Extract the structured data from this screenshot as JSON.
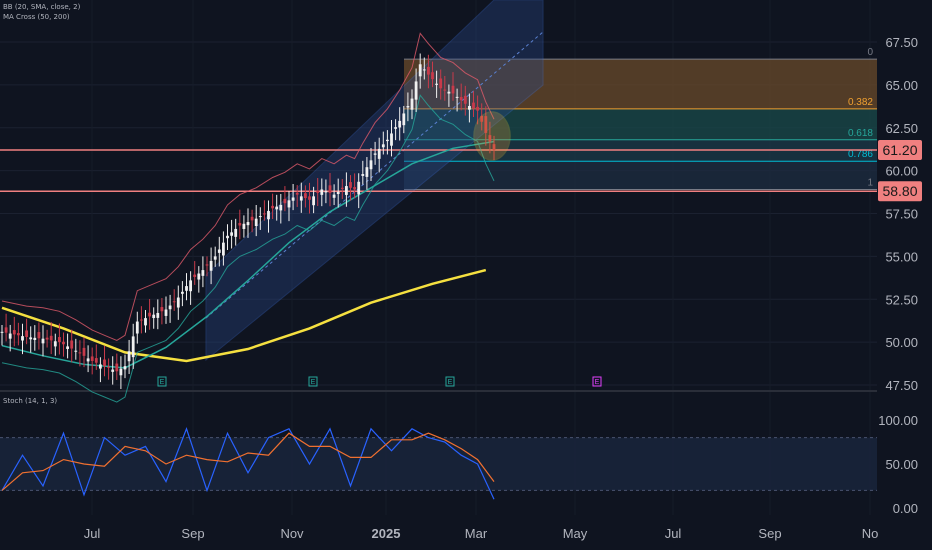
{
  "indicators": {
    "bb": "BB (20, SMA, close, 2)",
    "ma": "MA Cross (50, 200)",
    "stoch": "Stoch (14, 1, 3)"
  },
  "chart_data": {
    "type": "candlestick",
    "price_axis": {
      "ticks": [
        "67.50",
        "65.00",
        "62.50",
        "60.00",
        "57.50",
        "55.00",
        "52.50",
        "50.00",
        "47.50"
      ],
      "ylim": [
        47.5,
        67.5
      ]
    },
    "stoch_axis": {
      "ticks": [
        "100.00",
        "50.00",
        "0.00"
      ],
      "ylim": [
        0,
        100
      ],
      "bands": [
        80,
        20
      ]
    },
    "x_ticks": [
      "Jul",
      "Sep",
      "Nov",
      "2025",
      "Mar",
      "May",
      "Jul",
      "Sep",
      "No"
    ],
    "price_labels": [
      {
        "text": "61.20",
        "value": 61.2
      },
      {
        "text": "58.80",
        "value": 58.8
      }
    ],
    "horizontal_levels": [
      61.2,
      58.8
    ],
    "fib_levels": [
      {
        "label": "0",
        "value": 66.5
      },
      {
        "label": "0.382",
        "value": 63.6
      },
      {
        "label": "0.618",
        "value": 61.8
      },
      {
        "label": "0.786",
        "value": 60.55
      },
      {
        "label": "1",
        "value": 58.9
      }
    ],
    "earnings_markers": [
      "E",
      "E",
      "E",
      "E"
    ],
    "price_path": [
      [
        0,
        50.6
      ],
      [
        6,
        50.3
      ],
      [
        10,
        50.2
      ],
      [
        14,
        50.0
      ],
      [
        18,
        49.5
      ],
      [
        22,
        48.9
      ],
      [
        25,
        48.6
      ],
      [
        28,
        48.3
      ],
      [
        30,
        48.6
      ],
      [
        33,
        51.2
      ],
      [
        37,
        51.6
      ],
      [
        40,
        51.9
      ],
      [
        43,
        52.6
      ],
      [
        46,
        53.6
      ],
      [
        49,
        54.2
      ],
      [
        52,
        55.0
      ],
      [
        55,
        56.2
      ],
      [
        58,
        56.8
      ],
      [
        62,
        57.2
      ],
      [
        66,
        57.8
      ],
      [
        69,
        58.1
      ],
      [
        72,
        58.6
      ],
      [
        75,
        58.3
      ],
      [
        78,
        58.9
      ],
      [
        81,
        58.6
      ],
      [
        84,
        59.1
      ],
      [
        86,
        58.9
      ],
      [
        88,
        59.8
      ],
      [
        91,
        61.0
      ],
      [
        94,
        61.8
      ],
      [
        97,
        62.9
      ],
      [
        100,
        64.2
      ],
      [
        102,
        66.2
      ],
      [
        104,
        65.6
      ],
      [
        107,
        64.8
      ],
      [
        110,
        64.5
      ],
      [
        113,
        63.9
      ],
      [
        116,
        63.5
      ],
      [
        118,
        62.2
      ],
      [
        120,
        61.2
      ]
    ],
    "ma200": [
      [
        0,
        52.0
      ],
      [
        15,
        50.8
      ],
      [
        30,
        49.4
      ],
      [
        45,
        48.9
      ],
      [
        60,
        49.6
      ],
      [
        75,
        50.8
      ],
      [
        90,
        52.3
      ],
      [
        105,
        53.4
      ],
      [
        118,
        54.2
      ]
    ],
    "ma50": [
      [
        0,
        49.8
      ],
      [
        10,
        49.2
      ],
      [
        20,
        48.7
      ],
      [
        30,
        48.5
      ],
      [
        40,
        49.7
      ],
      [
        50,
        51.5
      ],
      [
        60,
        53.6
      ],
      [
        70,
        55.8
      ],
      [
        80,
        57.6
      ],
      [
        90,
        59.0
      ],
      [
        100,
        60.4
      ],
      [
        110,
        61.3
      ],
      [
        120,
        61.7
      ]
    ],
    "stoch_k": [
      [
        0,
        20
      ],
      [
        5,
        60
      ],
      [
        10,
        25
      ],
      [
        15,
        85
      ],
      [
        20,
        15
      ],
      [
        25,
        80
      ],
      [
        30,
        60
      ],
      [
        35,
        70
      ],
      [
        40,
        30
      ],
      [
        45,
        90
      ],
      [
        50,
        20
      ],
      [
        55,
        85
      ],
      [
        60,
        40
      ],
      [
        65,
        80
      ],
      [
        70,
        90
      ],
      [
        75,
        50
      ],
      [
        80,
        90
      ],
      [
        85,
        25
      ],
      [
        90,
        90
      ],
      [
        95,
        65
      ],
      [
        100,
        90
      ],
      [
        104,
        80
      ],
      [
        108,
        75
      ],
      [
        112,
        60
      ],
      [
        116,
        50
      ],
      [
        120,
        10
      ]
    ]
  }
}
